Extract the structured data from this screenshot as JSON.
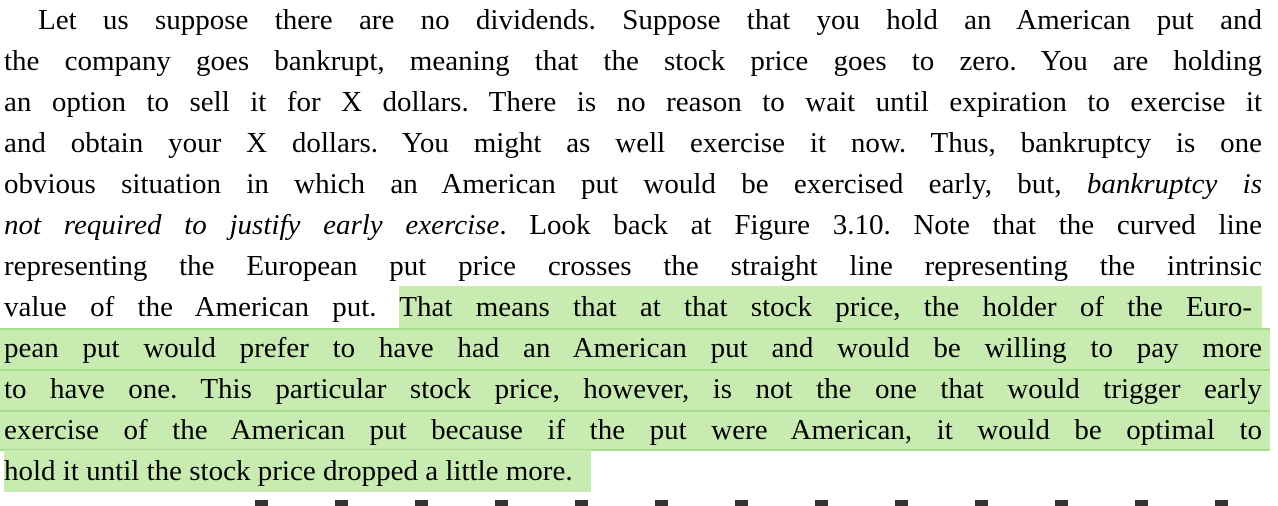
{
  "page": {
    "background_color": "#ffffff",
    "text_color": "#000000",
    "highlight_color": "#c7ebb1",
    "highlight_seam_color": "#a6dc8c"
  },
  "paragraph": {
    "lines": [
      {
        "indent": true,
        "justify": true,
        "full_highlight": false,
        "segments": [
          {
            "text": "Let us suppose there are no dividends. Suppose that you hold an American put and",
            "italic": false,
            "highlight": false
          }
        ]
      },
      {
        "indent": false,
        "justify": true,
        "full_highlight": false,
        "segments": [
          {
            "text": "the company goes bankrupt, meaning that the stock price goes to zero. You are holding",
            "italic": false,
            "highlight": false
          }
        ]
      },
      {
        "indent": false,
        "justify": true,
        "full_highlight": false,
        "segments": [
          {
            "text": "an option to sell it for X dollars. There is no reason to wait until expiration to exercise it",
            "italic": false,
            "highlight": false
          }
        ]
      },
      {
        "indent": false,
        "justify": true,
        "full_highlight": false,
        "segments": [
          {
            "text": "and obtain your X dollars. You might as well exercise it now. Thus, bankruptcy is one",
            "italic": false,
            "highlight": false
          }
        ]
      },
      {
        "indent": false,
        "justify": true,
        "full_highlight": false,
        "segments": [
          {
            "text": "obvious situation in which an American put would be exercised early, but, ",
            "italic": false,
            "highlight": false
          },
          {
            "text": "bankruptcy is",
            "italic": true,
            "highlight": false
          }
        ]
      },
      {
        "indent": false,
        "justify": true,
        "full_highlight": false,
        "segments": [
          {
            "text": "not required to justify early exercise",
            "italic": true,
            "highlight": false
          },
          {
            "text": ". Look back at Figure 3.10. Note that the curved line",
            "italic": false,
            "highlight": false
          }
        ]
      },
      {
        "indent": false,
        "justify": true,
        "full_highlight": false,
        "segments": [
          {
            "text": "representing the European put price crosses the straight line representing the intrinsic",
            "italic": false,
            "highlight": false
          }
        ]
      },
      {
        "indent": false,
        "justify": true,
        "full_highlight": false,
        "segments": [
          {
            "text": "value of the American put. ",
            "italic": false,
            "highlight": false
          },
          {
            "text": "That means that at that stock price, the holder of the Euro-",
            "italic": false,
            "highlight": true,
            "highlight_extend": "right"
          }
        ]
      },
      {
        "indent": false,
        "justify": true,
        "full_highlight": true,
        "segments": [
          {
            "text": "pean put would prefer to have had an American put and would be willing to pay more",
            "italic": false,
            "highlight": true
          }
        ]
      },
      {
        "indent": false,
        "justify": true,
        "full_highlight": true,
        "segments": [
          {
            "text": "to have one. This particular stock price, however, is not the one that would trigger early",
            "italic": false,
            "highlight": true
          }
        ]
      },
      {
        "indent": false,
        "justify": true,
        "full_highlight": true,
        "seam_bottom": true,
        "segments": [
          {
            "text": "exercise of the American put because if the put were American, it would be optimal to",
            "italic": false,
            "highlight": true
          }
        ]
      },
      {
        "indent": false,
        "justify": false,
        "full_highlight": false,
        "segments": [
          {
            "text": "hold it until the stock price dropped a little more.",
            "italic": false,
            "highlight": true,
            "highlight_extend": "tail"
          }
        ]
      }
    ]
  },
  "clipped_next_line": {
    "visible": true,
    "note": "only the tops of the letters of the next text line are visible at the bottom edge; text is illegible"
  }
}
